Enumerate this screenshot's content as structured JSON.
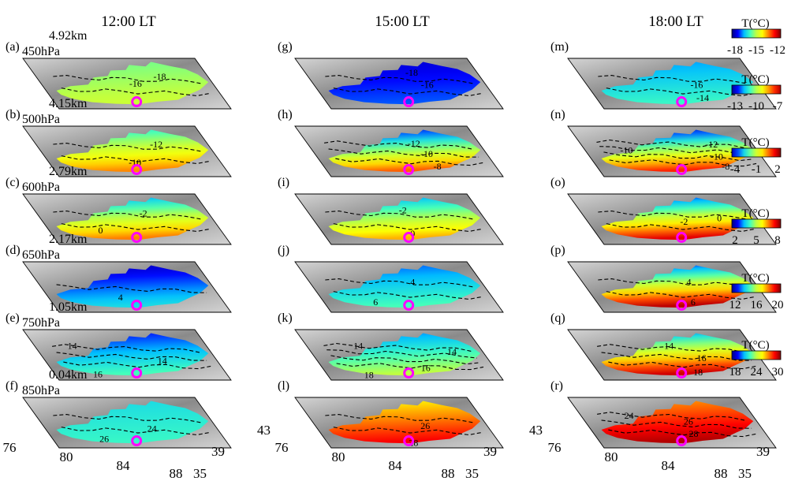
{
  "column_titles": [
    "12:00 LT",
    "15:00 LT",
    "18:00 LT"
  ],
  "rows": [
    {
      "height": "4.92km",
      "pressure": "450hPa"
    },
    {
      "height": "4.15km",
      "pressure": "500hPa"
    },
    {
      "height": "2.79km",
      "pressure": "600hPa"
    },
    {
      "height": "2.17km",
      "pressure": "650hPa"
    },
    {
      "height": "1.05km",
      "pressure": "750hPa"
    },
    {
      "height": "0.04km",
      "pressure": "850hPa"
    }
  ],
  "panels": [
    [
      "(a)",
      "(g)",
      "(m)"
    ],
    [
      "(b)",
      "(h)",
      "(n)"
    ],
    [
      "(c)",
      "(i)",
      "(o)"
    ],
    [
      "(d)",
      "(j)",
      "(p)"
    ],
    [
      "(e)",
      "(k)",
      "(q)"
    ],
    [
      "(f)",
      "(l)",
      "(r)"
    ]
  ],
  "contour_labels": [
    [
      [
        "-16",
        "-18"
      ],
      [
        "-18",
        "-16"
      ],
      [
        "-16",
        "-14"
      ]
    ],
    [
      [
        "-10",
        "-12"
      ],
      [
        "-12",
        "-10",
        "-8"
      ],
      [
        "-10",
        "-12",
        "-10",
        "-8"
      ]
    ],
    [
      [
        "-2",
        "0"
      ],
      [
        "-2",
        "0"
      ],
      [
        "-2",
        "0"
      ]
    ],
    [
      [
        "4"
      ],
      [
        "4",
        "6"
      ],
      [
        "4",
        "6"
      ]
    ],
    [
      [
        "14",
        "14",
        "16"
      ],
      [
        "14",
        "14",
        "16",
        "18"
      ],
      [
        "14",
        "16",
        "18"
      ]
    ],
    [
      [
        "24",
        "26"
      ],
      [
        "26",
        "28"
      ],
      [
        "24",
        "26",
        "28"
      ]
    ]
  ],
  "colorbars": [
    {
      "title": "T(°C)",
      "ticks": [
        "-18",
        "-15",
        "-12"
      ]
    },
    {
      "title": "T(°C)",
      "ticks": [
        "-13",
        "-10",
        "-7"
      ]
    },
    {
      "title": "T(°C)",
      "ticks": [
        "-4",
        "-1",
        "2"
      ]
    },
    {
      "title": "T(°C)",
      "ticks": [
        "2",
        "5",
        "8"
      ]
    },
    {
      "title": "T(°C)",
      "ticks": [
        "12",
        "16",
        "20"
      ]
    },
    {
      "title": "T(°C)",
      "ticks": [
        "18",
        "24",
        "30"
      ]
    }
  ],
  "axes": {
    "longitude_ticks": [
      "76",
      "80",
      "84",
      "88"
    ],
    "latitude_ticks": [
      "35",
      "39",
      "43"
    ]
  },
  "colors": {
    "colormap": [
      "#00007f",
      "#0000ff",
      "#00bfff",
      "#40ffbf",
      "#c0ff40",
      "#ffff00",
      "#ff7f00",
      "#ff0000",
      "#7f0000"
    ],
    "marker": "#ff00ff",
    "contour": "#000000",
    "terrain_dark": "#8a8a8a",
    "terrain_light": "#d4d4d4"
  },
  "panel_color_levels": [
    [
      [
        0.42,
        0.52
      ],
      [
        0.08,
        0.18
      ],
      [
        0.22,
        0.36
      ]
    ],
    [
      [
        0.32,
        0.74
      ],
      [
        0.08,
        0.78
      ],
      [
        0.06,
        0.84
      ]
    ],
    [
      [
        0.22,
        0.75
      ],
      [
        0.22,
        0.7
      ],
      [
        0.12,
        0.9
      ]
    ],
    [
      [
        0.05,
        0.3
      ],
      [
        0.18,
        0.38
      ],
      [
        0.12,
        0.94
      ]
    ],
    [
      [
        0.12,
        0.38
      ],
      [
        0.2,
        0.5
      ],
      [
        0.2,
        0.92
      ]
    ],
    [
      [
        0.3,
        0.36
      ],
      [
        0.62,
        0.88
      ],
      [
        0.72,
        0.95
      ]
    ]
  ]
}
